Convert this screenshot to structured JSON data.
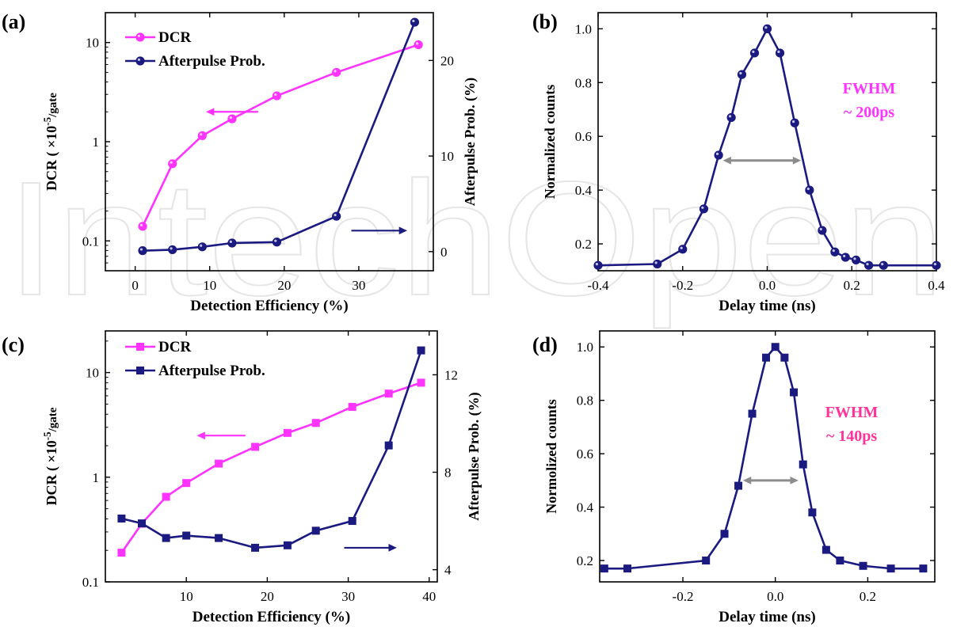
{
  "watermark": "IntechOpen",
  "colors": {
    "dcr": "#ff33ff",
    "afterpulse": "#1a1a80",
    "fwhm_arrow": "#8c8c8c",
    "fwhm_b": "#ff33ff",
    "fwhm_d": "#ff3399"
  },
  "chart_data": [
    {
      "panel": "(a)",
      "type": "line",
      "marker": "circle",
      "xlabel": "Detection Efficiency (%)",
      "ylabel_left": "DCR",
      "ylabel_left_unit": "×10",
      "ylabel_left_exp": "-5",
      "ylabel_left_tail": "/gate",
      "ylabel_right": "Afterpulse Prob. (%)",
      "xlim": [
        -4,
        40
      ],
      "xticks": [
        "0",
        "10",
        "20",
        "30"
      ],
      "xtick_values": [
        0,
        10,
        20,
        30
      ],
      "yscale_left": "log",
      "ylim_left": [
        0.05,
        20
      ],
      "yticks_left": [
        "0.1",
        "1",
        "10"
      ],
      "ytick_values_left": [
        0.1,
        1,
        10
      ],
      "ylim_right": [
        -2,
        25
      ],
      "yticks_right": [
        "0",
        "10",
        "20"
      ],
      "ytick_values_right": [
        0,
        10,
        20
      ],
      "legend_placement": "top-left",
      "series": [
        {
          "name": "DCR",
          "axis": "left",
          "x": [
            1,
            5,
            9,
            13,
            19,
            27,
            38
          ],
          "values": [
            0.14,
            0.6,
            1.15,
            1.7,
            2.9,
            5.0,
            9.5
          ]
        },
        {
          "name": "Afterpulse Prob.",
          "axis": "right",
          "x": [
            1,
            5,
            9,
            13,
            19,
            27,
            37.5
          ],
          "values": [
            0.1,
            0.2,
            0.5,
            0.9,
            1.0,
            3.7,
            24
          ]
        }
      ],
      "arrows": [
        {
          "series": "DCR",
          "direction": "left",
          "x1": 16.5,
          "x2": 9.5,
          "y": 2.0,
          "axis": "left"
        },
        {
          "series": "Afterpulse Prob.",
          "direction": "right",
          "x1": 29,
          "x2": 36.5,
          "y": 2.2,
          "axis": "right"
        }
      ]
    },
    {
      "panel": "(b)",
      "type": "line",
      "marker": "circle",
      "xlabel": "Delay time (ns)",
      "ylabel": "Normalized counts",
      "xlim": [
        -0.4,
        0.4
      ],
      "xticks": [
        "-0.4",
        "-0.2",
        "0.0",
        "0.2",
        "0.4"
      ],
      "xtick_values": [
        -0.4,
        -0.2,
        0.0,
        0.2,
        0.4
      ],
      "ylim": [
        0.1,
        1.06
      ],
      "yticks": [
        "0.2",
        "0.4",
        "0.6",
        "0.8",
        "1.0"
      ],
      "ytick_values": [
        0.2,
        0.4,
        0.6,
        0.8,
        1.0
      ],
      "series": [
        {
          "x": [
            -0.4,
            -0.26,
            -0.2,
            -0.15,
            -0.115,
            -0.085,
            -0.06,
            -0.03,
            0.0,
            0.03,
            0.065,
            0.1,
            0.13,
            0.16,
            0.185,
            0.21,
            0.24,
            0.275,
            0.4
          ],
          "values": [
            0.12,
            0.125,
            0.18,
            0.33,
            0.53,
            0.67,
            0.83,
            0.91,
            1.0,
            0.91,
            0.65,
            0.4,
            0.25,
            0.17,
            0.15,
            0.14,
            0.12,
            0.12,
            0.12
          ]
        }
      ],
      "annotation_line1": "FWHM",
      "annotation_line2": "~ 200ps",
      "fwhm_arrow": {
        "x1": -0.105,
        "x2": 0.08,
        "y": 0.51
      }
    },
    {
      "panel": "(c)",
      "type": "line",
      "marker": "square",
      "xlabel": "Detection Efficiency (%)",
      "ylabel_left": "DCR",
      "ylabel_left_unit": "×10",
      "ylabel_left_exp": "-5",
      "ylabel_left_tail": "/gate",
      "ylabel_right": "Afterpulse Prob. (%)",
      "xlim": [
        0,
        41
      ],
      "xticks": [
        "10",
        "20",
        "30",
        "40"
      ],
      "xtick_values": [
        10,
        20,
        30,
        40
      ],
      "yscale_left": "log",
      "ylim_left": [
        0.1,
        25
      ],
      "yticks_left": [
        "0.1",
        "1",
        "10"
      ],
      "ytick_values_left": [
        0.1,
        1,
        10
      ],
      "ylim_right": [
        3.5,
        13.8
      ],
      "yticks_right": [
        "4",
        "8",
        "12"
      ],
      "ytick_values_right": [
        4,
        8,
        12
      ],
      "legend_placement": "top-left",
      "series": [
        {
          "name": "DCR",
          "axis": "left",
          "x": [
            2,
            4.5,
            7.5,
            10,
            14,
            18.5,
            22.5,
            26,
            30.5,
            35,
            39
          ],
          "values": [
            0.19,
            0.36,
            0.65,
            0.88,
            1.35,
            1.95,
            2.65,
            3.3,
            4.7,
            6.3,
            8.0
          ]
        },
        {
          "name": "Afterpulse Prob.",
          "axis": "right",
          "x": [
            2,
            4.5,
            7.5,
            10,
            14,
            18.5,
            22.5,
            26,
            30.5,
            35,
            39
          ],
          "values": [
            6.1,
            5.9,
            5.3,
            5.4,
            5.3,
            4.9,
            5.0,
            5.6,
            6.0,
            9.1,
            13.0
          ]
        }
      ],
      "arrows": [
        {
          "series": "DCR",
          "direction": "left",
          "x1": 17.3,
          "x2": 11.3,
          "y": 2.5,
          "axis": "left"
        },
        {
          "series": "Afterpulse Prob.",
          "direction": "right",
          "x1": 29.5,
          "x2": 36,
          "y": 4.9,
          "axis": "right"
        }
      ]
    },
    {
      "panel": "(d)",
      "type": "line",
      "marker": "square",
      "xlabel": "Delay time (ns)",
      "ylabel": "Normolized counts",
      "xlim": [
        -0.38,
        0.345
      ],
      "xticks": [
        "-0.2",
        "0.0",
        "0.2"
      ],
      "xtick_values": [
        -0.2,
        0.0,
        0.2
      ],
      "ylim": [
        0.12,
        1.06
      ],
      "yticks": [
        "0.2",
        "0.4",
        "0.6",
        "0.8",
        "1.0"
      ],
      "ytick_values": [
        0.2,
        0.4,
        0.6,
        0.8,
        1.0
      ],
      "series": [
        {
          "x": [
            -0.37,
            -0.32,
            -0.15,
            -0.11,
            -0.08,
            -0.05,
            -0.02,
            0.0,
            0.02,
            0.04,
            0.06,
            0.08,
            0.11,
            0.14,
            0.19,
            0.25,
            0.32
          ],
          "values": [
            0.17,
            0.17,
            0.2,
            0.3,
            0.48,
            0.75,
            0.96,
            1.0,
            0.96,
            0.83,
            0.56,
            0.38,
            0.24,
            0.2,
            0.18,
            0.17,
            0.17
          ]
        }
      ],
      "annotation_line1": "FWHM",
      "annotation_line2": "~ 140ps",
      "fwhm_arrow": {
        "x1": -0.07,
        "x2": 0.05,
        "y": 0.5
      }
    }
  ]
}
